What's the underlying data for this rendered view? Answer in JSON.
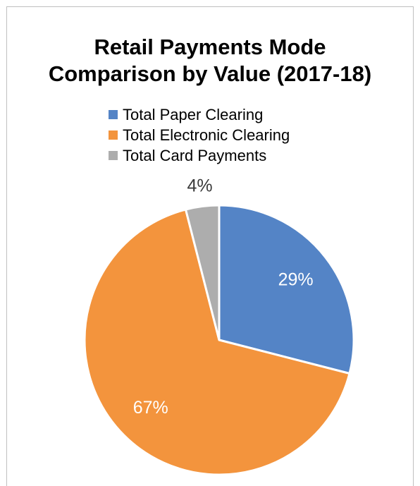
{
  "chart_data": {
    "type": "pie",
    "title_lines": [
      "Retail Payments Mode",
      "Comparison by Value (2017-18)"
    ],
    "categories": [
      "Total Paper Clearing",
      "Total Electronic Clearing",
      "Total Card Payments"
    ],
    "values": [
      29,
      67,
      4
    ],
    "labels": [
      "29%",
      "67%",
      "4%"
    ],
    "colors": [
      "#5484c6",
      "#f3943d",
      "#adadad"
    ],
    "label_colors": [
      "#ffffff",
      "#ffffff",
      "#3a3a3a"
    ],
    "legend_position": "top"
  }
}
